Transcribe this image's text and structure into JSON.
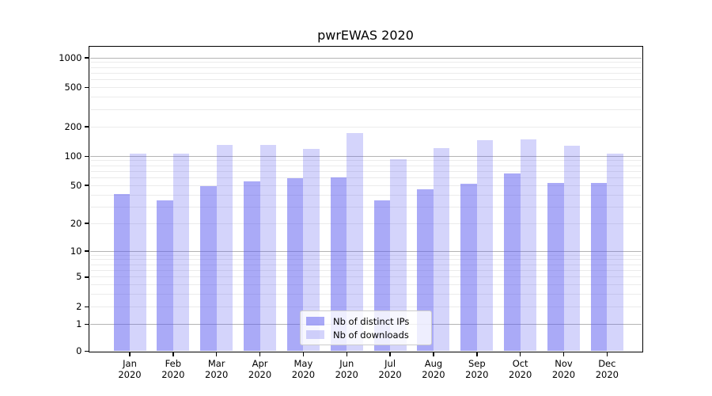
{
  "title": "pwrEWAS 2020",
  "legend": {
    "location": "lower center",
    "items": [
      {
        "label": "Nb of distinct IPs",
        "color_hex": "#aaaaf7",
        "color_rgba": "rgba(85,85,239,0.5)"
      },
      {
        "label": "Nb of downloads",
        "color_hex": "#d9d9f7",
        "color_rgba": "rgba(85,85,239,0.25)"
      }
    ]
  },
  "axes": {
    "y_ticks": [
      0,
      1,
      2,
      5,
      10,
      20,
      50,
      100,
      200,
      500,
      1000
    ],
    "y_scale": "log-like (log10(1+x))",
    "x_months": [
      "Jan",
      "Feb",
      "Mar",
      "Apr",
      "May",
      "Jun",
      "Jul",
      "Aug",
      "Sep",
      "Oct",
      "Nov",
      "Dec"
    ],
    "x_year": "2020"
  },
  "colors": {
    "major_grid": "#b4b4b4",
    "minor_grid": "#ebebeb",
    "axis_spine": "#000000",
    "text": "#000000",
    "legend_border": "#cccccc",
    "background": "#ffffff"
  },
  "chart_data": {
    "type": "bar",
    "title": "pwrEWAS 2020",
    "categories": [
      "Jan 2020",
      "Feb 2020",
      "Mar 2020",
      "Apr 2020",
      "May 2020",
      "Jun 2020",
      "Jul 2020",
      "Aug 2020",
      "Sep 2020",
      "Oct 2020",
      "Nov 2020",
      "Dec 2020"
    ],
    "series": [
      {
        "name": "Nb of distinct IPs",
        "values": [
          41,
          35,
          49,
          55,
          59,
          61,
          35,
          46,
          52,
          66,
          53,
          53
        ]
      },
      {
        "name": "Nb of downloads",
        "values": [
          107,
          106,
          131,
          130,
          119,
          174,
          94,
          122,
          147,
          149,
          127,
          106
        ]
      }
    ],
    "xlabel": "",
    "ylabel": "",
    "y_ticks": [
      0,
      1,
      2,
      5,
      10,
      20,
      50,
      100,
      200,
      500,
      1000
    ],
    "y_scale": "log-like (log10(1+x))",
    "ylim": [
      0,
      1300
    ],
    "grid": true,
    "legend_position": "lower center"
  }
}
